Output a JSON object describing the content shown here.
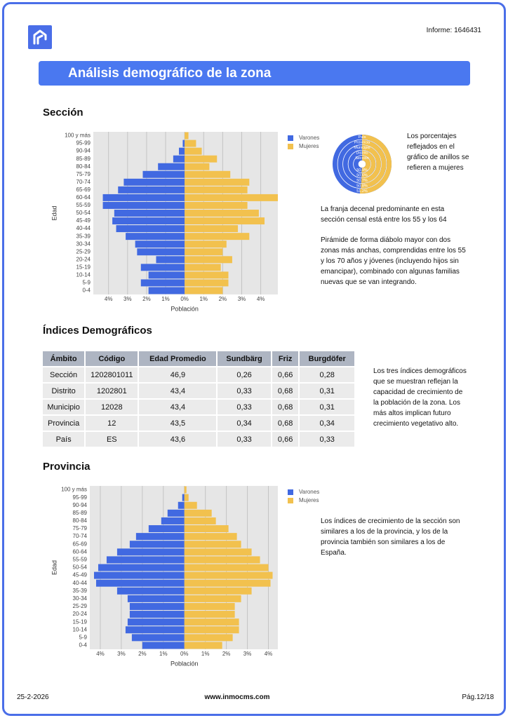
{
  "header": {
    "report": "Informe: 1646431",
    "title": "Análisis demográfico de la zona"
  },
  "seccion": {
    "heading": "Sección",
    "ring_note": "Los porcentajes reflejados en el gráfico de anillos se refieren a mujeres",
    "paragraphs": [
      "La franja decenal predominante en esta sección censal está entre los 55 y los 64",
      "Pirámide de forma diábolo mayor con dos zonas más anchas, comprendidas entre los 55 y los 70 años y jóvenes (incluyendo hijos sin emancipar), combinado con algunas familias nuevas que se van integrando."
    ]
  },
  "indices": {
    "heading": "Índices Demográficos",
    "table": {
      "columns": [
        "Ámbito",
        "Código",
        "Edad Promedio",
        "Sundbärg",
        "Friz",
        "Burgdöfer"
      ],
      "rows": [
        [
          "Sección",
          "1202801011",
          "46,9",
          "0,26",
          "0,66",
          "0,28"
        ],
        [
          "Distrito",
          "1202801",
          "43,4",
          "0,33",
          "0,68",
          "0,31"
        ],
        [
          "Municipio",
          "12028",
          "43,4",
          "0,33",
          "0,68",
          "0,31"
        ],
        [
          "Provincia",
          "12",
          "43,5",
          "0,34",
          "0,68",
          "0,34"
        ],
        [
          "País",
          "ES",
          "43,6",
          "0,33",
          "0,66",
          "0,33"
        ]
      ]
    },
    "note": "Los tres índices demográficos que se muestran reflejan la capacidad de crecimiento de la población de la zona. Los más altos implican futuro crecimiento vegetativo alto."
  },
  "provincia": {
    "heading": "Provincia",
    "note": "Los índices de crecimiento de la sección son similares a los de la provincia, y los de la provincia también son similares a los de España."
  },
  "footer": {
    "date": "25-2-2026",
    "site": "www.inmocms.com",
    "page": "Pág.12/18"
  },
  "chart_data": [
    {
      "type": "pyramid",
      "xlabel": "Población",
      "ylabel": "Edad",
      "legend": "right",
      "grid": true,
      "categories": [
        "100 y más",
        "95-99",
        "90-94",
        "85-89",
        "80-84",
        "75-79",
        "70-74",
        "65-69",
        "60-64",
        "55-59",
        "50-54",
        "45-49",
        "40-44",
        "35-39",
        "30-34",
        "25-29",
        "20-24",
        "15-19",
        "10-14",
        "5-9",
        "0-4"
      ],
      "series": [
        {
          "name": "Varones",
          "color": "#4169e1",
          "values": [
            0,
            -0.1,
            -0.3,
            -0.6,
            -1.4,
            -2.2,
            -3.2,
            -3.5,
            -4.3,
            -4.3,
            -3.7,
            -3.8,
            -3.6,
            -3.1,
            -2.6,
            -2.5,
            -1.5,
            -2.3,
            -1.9,
            -2.3,
            -1.9
          ]
        },
        {
          "name": "Mujeres",
          "color": "#f2c14e",
          "values": [
            0.2,
            0.6,
            0.9,
            1.7,
            1.3,
            2.4,
            3.4,
            3.3,
            4.9,
            3.3,
            3.9,
            4.2,
            2.8,
            3.4,
            2.2,
            2.0,
            2.5,
            1.9,
            2.3,
            2.3,
            2.0
          ]
        }
      ],
      "xlim": [
        -4.8,
        4.9
      ],
      "xticks": [
        {
          "value": -4,
          "label": "4%"
        },
        {
          "value": -3,
          "label": "3%"
        },
        {
          "value": -2,
          "label": "2%"
        },
        {
          "value": -1,
          "label": "1%"
        },
        {
          "value": 0,
          "label": "0%"
        },
        {
          "value": 1,
          "label": "1%"
        },
        {
          "value": 2,
          "label": "2%"
        },
        {
          "value": 3,
          "label": "3%"
        },
        {
          "value": 4,
          "label": "4%"
        }
      ]
    },
    {
      "type": "ring",
      "color": "#f2c14e",
      "base_color": "#4169e1",
      "categories": [
        "País",
        "Provincia",
        "Municipio",
        "Distrito",
        "Sección"
      ],
      "values": [
        51.2,
        50.8,
        50.7,
        50.6,
        50.9
      ],
      "value_labels": [
        "51.2%",
        "50.8%",
        "50.7%",
        "50.6%",
        "50.9%"
      ]
    },
    {
      "type": "pyramid",
      "xlabel": "Población",
      "ylabel": "Edad",
      "legend": "right",
      "grid": true,
      "categories": [
        "100 y más",
        "95-99",
        "90-94",
        "85-89",
        "80-84",
        "75-79",
        "70-74",
        "65-69",
        "60-64",
        "55-59",
        "50-54",
        "45-49",
        "40-44",
        "35-39",
        "30-34",
        "25-29",
        "20-24",
        "15-19",
        "10-14",
        "5-9",
        "0-4"
      ],
      "series": [
        {
          "name": "Varones",
          "color": "#4169e1",
          "values": [
            0,
            -0.1,
            -0.3,
            -0.8,
            -1.1,
            -1.7,
            -2.3,
            -2.6,
            -3.2,
            -3.7,
            -4.1,
            -4.3,
            -4.2,
            -3.2,
            -2.7,
            -2.6,
            -2.6,
            -2.7,
            -2.8,
            -2.5,
            -2.0
          ]
        },
        {
          "name": "Mujeres",
          "color": "#f2c14e",
          "values": [
            0.1,
            0.2,
            0.6,
            1.3,
            1.5,
            2.1,
            2.5,
            2.7,
            3.2,
            3.6,
            4.0,
            4.2,
            4.1,
            3.2,
            2.7,
            2.4,
            2.4,
            2.6,
            2.6,
            2.3,
            1.8
          ]
        }
      ],
      "xlim": [
        -4.5,
        4.45
      ],
      "xticks": [
        {
          "value": -4,
          "label": "4%"
        },
        {
          "value": -3,
          "label": "3%"
        },
        {
          "value": -2,
          "label": "2%"
        },
        {
          "value": -1,
          "label": "1%"
        },
        {
          "value": 0,
          "label": "0%"
        },
        {
          "value": 1,
          "label": "1%"
        },
        {
          "value": 2,
          "label": "2%"
        },
        {
          "value": 3,
          "label": "3%"
        },
        {
          "value": 4,
          "label": "4%"
        }
      ]
    }
  ]
}
